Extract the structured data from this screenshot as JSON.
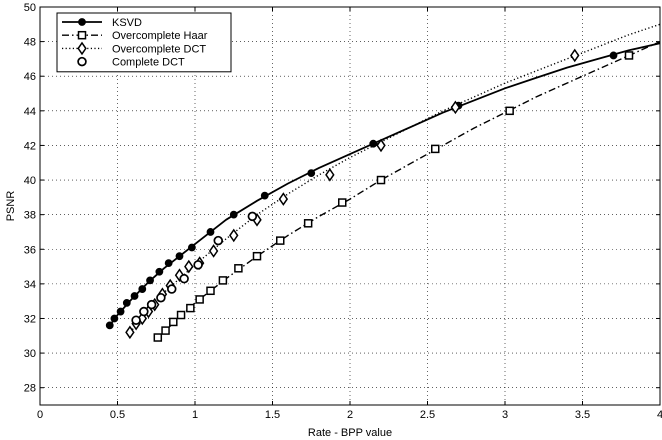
{
  "chart_data": {
    "type": "line",
    "xlabel": "Rate - BPP value",
    "ylabel": "PSNR",
    "xlim": [
      0,
      4
    ],
    "ylim": [
      27,
      50
    ],
    "xticks": [
      0,
      0.5,
      1,
      1.5,
      2,
      2.5,
      3,
      3.5,
      4
    ],
    "xtick_labels": [
      "0",
      "0.5",
      "1",
      "1.5",
      "2",
      "2.5",
      "3",
      "3.5",
      "4"
    ],
    "yticks": [
      28,
      30,
      32,
      34,
      36,
      38,
      40,
      42,
      44,
      46,
      48,
      50
    ],
    "ytick_labels": [
      "28",
      "30",
      "32",
      "34",
      "36",
      "38",
      "40",
      "42",
      "44",
      "46",
      "48",
      "50"
    ],
    "grid": true,
    "legend_position": "top-left",
    "series": [
      {
        "name": "KSVD",
        "line_style": "solid",
        "marker": "filled-circle",
        "x": [
          0.45,
          0.48,
          0.52,
          0.56,
          0.61,
          0.66,
          0.71,
          0.77,
          0.83,
          0.9,
          0.98,
          1.1,
          1.25,
          1.45,
          1.75,
          2.15,
          2.7,
          3.7
        ],
        "y": [
          31.6,
          32.0,
          32.4,
          32.9,
          33.3,
          33.7,
          34.2,
          34.7,
          35.2,
          35.6,
          36.1,
          37.0,
          38.0,
          39.1,
          40.4,
          42.1,
          44.3,
          47.2
        ],
        "curve_x": [
          0.45,
          0.5,
          0.6,
          0.7,
          0.8,
          0.9,
          1.0,
          1.2,
          1.4,
          1.6,
          1.8,
          2.0,
          2.2,
          2.4,
          2.6,
          2.8,
          3.0,
          3.2,
          3.4,
          3.6,
          3.8,
          4.0
        ],
        "curve_y": [
          31.6,
          32.2,
          33.2,
          34.1,
          34.9,
          35.6,
          36.3,
          37.7,
          38.8,
          39.8,
          40.7,
          41.5,
          42.3,
          43.1,
          43.9,
          44.6,
          45.3,
          45.9,
          46.5,
          47.0,
          47.5,
          47.9
        ]
      },
      {
        "name": "Overcomplete Haar",
        "line_style": "dashdot",
        "marker": "open-square",
        "x": [
          0.76,
          0.81,
          0.86,
          0.91,
          0.97,
          1.03,
          1.1,
          1.18,
          1.28,
          1.4,
          1.55,
          1.73,
          1.95,
          2.2,
          2.55,
          3.03,
          3.8
        ],
        "y": [
          30.9,
          31.3,
          31.8,
          32.2,
          32.6,
          33.1,
          33.6,
          34.2,
          34.9,
          35.6,
          36.5,
          37.5,
          38.7,
          40.0,
          41.8,
          44.0,
          47.2
        ],
        "curve_x": [
          0.76,
          0.8,
          0.9,
          1.0,
          1.1,
          1.2,
          1.4,
          1.6,
          1.8,
          2.0,
          2.2,
          2.4,
          2.6,
          2.8,
          3.0,
          3.2,
          3.4,
          3.6,
          3.8,
          4.0
        ],
        "curve_y": [
          30.9,
          31.2,
          32.1,
          32.9,
          33.6,
          34.3,
          35.6,
          36.8,
          37.9,
          38.9,
          40.0,
          41.0,
          42.0,
          43.0,
          43.9,
          44.8,
          45.6,
          46.4,
          47.2,
          48.0
        ]
      },
      {
        "name": "Overcomplete DCT",
        "line_style": "dotted",
        "marker": "open-diamond",
        "x": [
          0.58,
          0.62,
          0.66,
          0.7,
          0.74,
          0.79,
          0.84,
          0.9,
          0.96,
          1.03,
          1.12,
          1.25,
          1.4,
          1.57,
          1.87,
          2.2,
          2.68,
          3.45
        ],
        "y": [
          31.2,
          31.7,
          32.0,
          32.4,
          32.8,
          33.4,
          33.9,
          34.5,
          35.0,
          35.2,
          35.9,
          36.8,
          37.7,
          38.9,
          40.3,
          42.0,
          44.2,
          47.2
        ],
        "curve_x": [
          0.58,
          0.6,
          0.7,
          0.8,
          0.9,
          1.0,
          1.2,
          1.4,
          1.6,
          1.8,
          2.0,
          2.2,
          2.4,
          2.6,
          2.8,
          3.0,
          3.2,
          3.4,
          3.6,
          3.8,
          4.0
        ],
        "curve_y": [
          31.2,
          31.4,
          32.5,
          33.5,
          34.3,
          35.1,
          36.6,
          38.0,
          39.2,
          40.3,
          41.3,
          42.2,
          43.1,
          44.0,
          44.8,
          45.6,
          46.3,
          47.0,
          47.7,
          48.4,
          49.0
        ]
      },
      {
        "name": "Complete DCT",
        "line_style": "none",
        "marker": "open-circle",
        "x": [
          0.62,
          0.67,
          0.72,
          0.78,
          0.85,
          0.93,
          1.02,
          1.15,
          1.37
        ],
        "y": [
          31.9,
          32.4,
          32.8,
          33.2,
          33.7,
          34.3,
          35.1,
          36.5,
          37.9
        ]
      }
    ]
  }
}
